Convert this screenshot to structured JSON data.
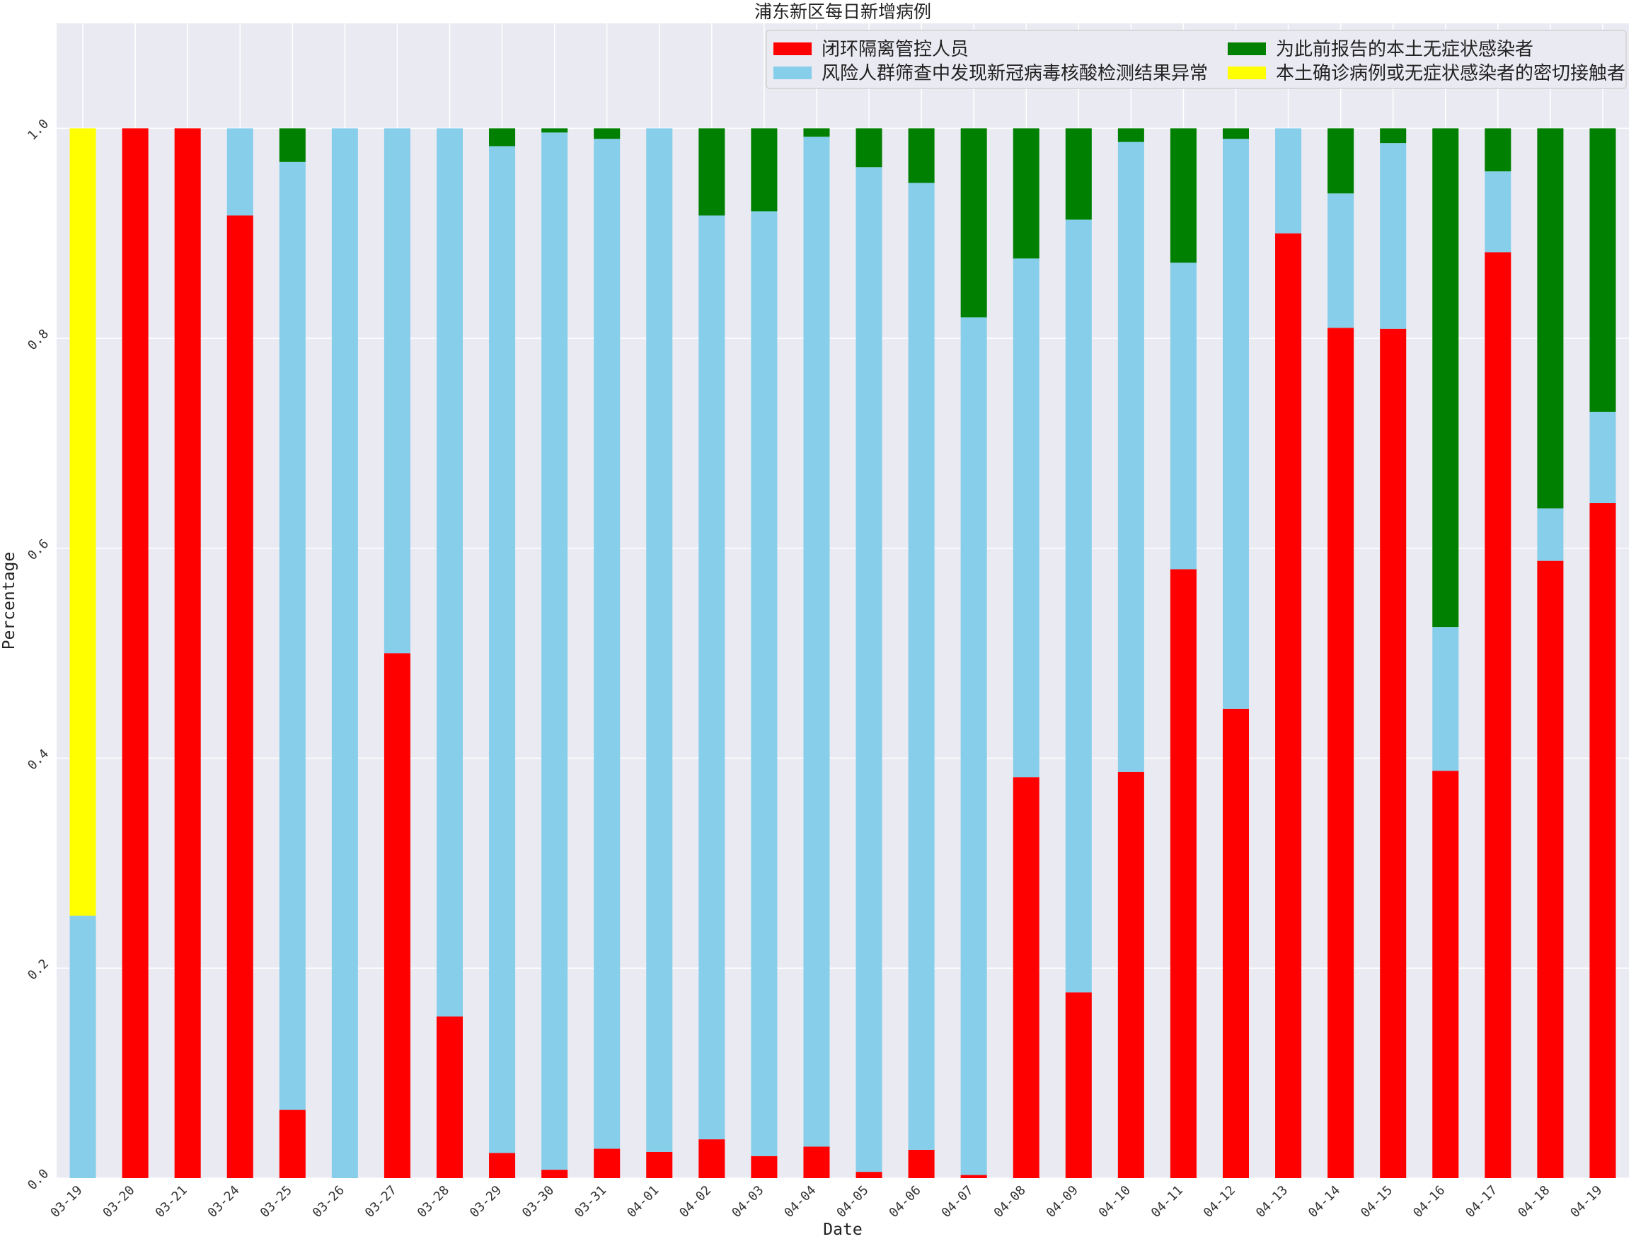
{
  "chart_data": {
    "type": "bar",
    "stacked": true,
    "title": "浦东新区每日新增病例",
    "xlabel": "Date",
    "ylabel": "Percentage",
    "ylim": [
      0,
      1.1
    ],
    "yticks": [
      "0.0",
      "0.2",
      "0.4",
      "0.6",
      "0.8",
      "1.0"
    ],
    "grid": true,
    "legend_position": "top-right",
    "categories": [
      "03-19",
      "03-20",
      "03-21",
      "03-24",
      "03-25",
      "03-26",
      "03-27",
      "03-28",
      "03-29",
      "03-30",
      "03-31",
      "04-01",
      "04-02",
      "04-03",
      "04-04",
      "04-05",
      "04-06",
      "04-07",
      "04-08",
      "04-09",
      "04-10",
      "04-11",
      "04-12",
      "04-13",
      "04-14",
      "04-15",
      "04-16",
      "04-17",
      "04-18",
      "04-19"
    ],
    "series": [
      {
        "name": "闭环隔离管控人员",
        "color": "#ff0000",
        "values": [
          0,
          1,
          1,
          0.917,
          0.065,
          0,
          0.5,
          0.154,
          0.024,
          0.008,
          0.028,
          0.025,
          0.037,
          0.021,
          0.03,
          0.006,
          0.027,
          0.003,
          0.382,
          0.177,
          0.387,
          0.58,
          0.447,
          0.9,
          0.81,
          0.809,
          0.388,
          0.882,
          0.588,
          0.643
        ]
      },
      {
        "name": "风险人群筛查中发现新冠病毒核酸检测结果异常",
        "color": "#87ceeb",
        "values": [
          0.25,
          0,
          0,
          0.083,
          0.903,
          1,
          0.5,
          0.846,
          0.959,
          0.988,
          0.962,
          0.975,
          0.88,
          0.9,
          0.962,
          0.957,
          0.921,
          0.817,
          0.494,
          0.736,
          0.6,
          0.292,
          0.543,
          0.1,
          0.128,
          0.177,
          0.137,
          0.077,
          0.05,
          0.087
        ]
      },
      {
        "name": "为此前报告的本土无症状感染者",
        "color": "#008000",
        "values": [
          0,
          0,
          0,
          0,
          0.032,
          0,
          0,
          0,
          0.017,
          0.004,
          0.01,
          0,
          0.083,
          0.079,
          0.008,
          0.037,
          0.052,
          0.18,
          0.124,
          0.087,
          0.013,
          0.128,
          0.01,
          0,
          0.062,
          0.014,
          0.475,
          0.041,
          0.362,
          0.27
        ]
      },
      {
        "name": "本土确诊病例或无症状感染者的密切接触者",
        "color": "#ffff00",
        "values": [
          0.75,
          0,
          0,
          0,
          0,
          0,
          0,
          0,
          0,
          0,
          0,
          0,
          0,
          0,
          0,
          0,
          0,
          0,
          0,
          0,
          0,
          0,
          0,
          0,
          0,
          0,
          0,
          0,
          0,
          0
        ]
      }
    ]
  }
}
